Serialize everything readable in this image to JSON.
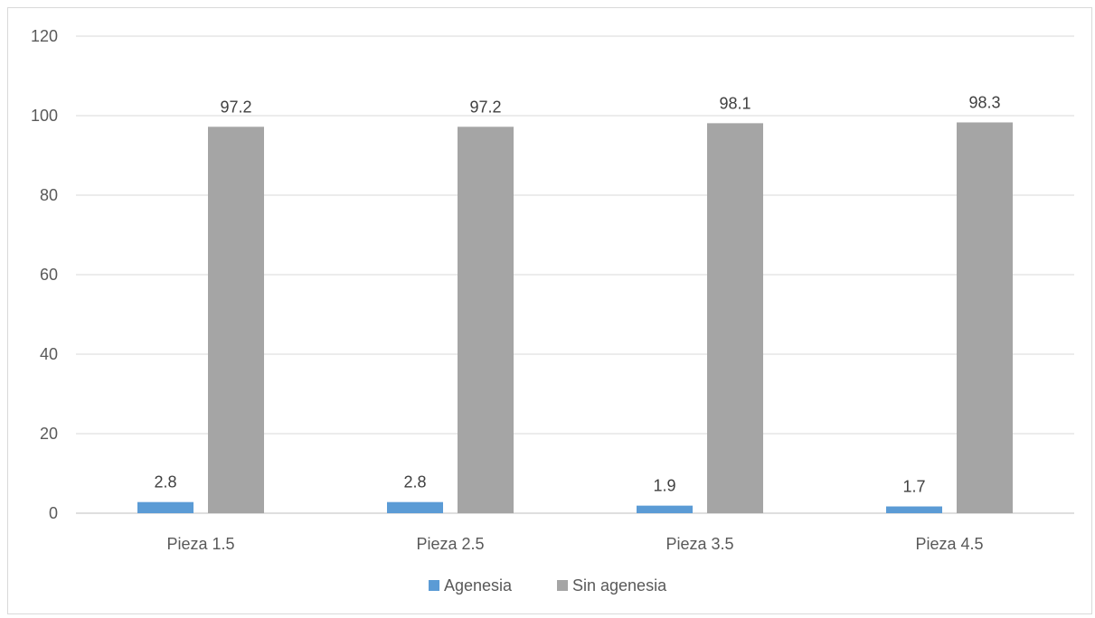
{
  "chart_data": {
    "type": "bar",
    "title": "",
    "xlabel": "",
    "ylabel": "",
    "categories": [
      "Pieza 1.5",
      "Pieza 2.5",
      "Pieza 3.5",
      "Pieza 4.5"
    ],
    "series": [
      {
        "name": "Agenesia",
        "color": "#5b9bd5",
        "values": [
          2.8,
          2.8,
          1.9,
          1.7
        ],
        "labels": [
          "2.8",
          "2.8",
          "1.9",
          "1.7"
        ]
      },
      {
        "name": "Sin agenesia",
        "color": "#a5a5a5",
        "values": [
          97.2,
          97.2,
          98.1,
          98.3
        ],
        "labels": [
          "97.2",
          "97.2",
          "98.1",
          "98.3"
        ]
      }
    ],
    "ylim": [
      0,
      120
    ],
    "yticks": [
      0,
      20,
      40,
      60,
      80,
      100,
      120
    ],
    "ytick_labels": [
      "0",
      "20",
      "40",
      "60",
      "80",
      "100",
      "120"
    ],
    "grid": true,
    "legend_position": "bottom"
  }
}
